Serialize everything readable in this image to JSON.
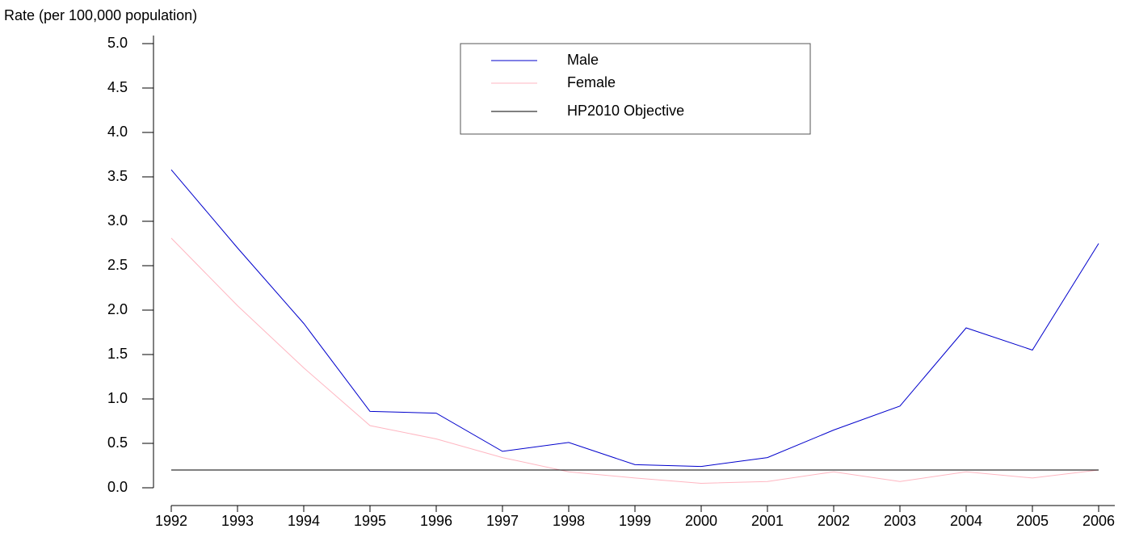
{
  "chart_data": {
    "type": "line",
    "y_label": "Rate (per 100,000 population)",
    "categories": [
      "1992",
      "1993",
      "1994",
      "1995",
      "1996",
      "1997",
      "1998",
      "1999",
      "2000",
      "2001",
      "2002",
      "2003",
      "2004",
      "2005",
      "2006"
    ],
    "series": [
      {
        "name": "Male",
        "color": "#0000cc",
        "values": [
          3.58,
          2.7,
          1.85,
          0.86,
          0.84,
          0.41,
          0.51,
          0.26,
          0.24,
          0.34,
          0.65,
          0.92,
          1.8,
          1.55,
          2.75
        ]
      },
      {
        "name": "Female",
        "color": "#ffb6c1",
        "values": [
          2.81,
          2.05,
          1.35,
          0.7,
          0.55,
          0.34,
          0.18,
          0.11,
          0.05,
          0.07,
          0.18,
          0.07,
          0.18,
          0.11,
          0.2
        ]
      },
      {
        "name": "HP2010 Objective",
        "color": "#000000",
        "values": [
          0.2,
          0.2,
          0.2,
          0.2,
          0.2,
          0.2,
          0.2,
          0.2,
          0.2,
          0.2,
          0.2,
          0.2,
          0.2,
          0.2,
          0.2
        ]
      }
    ],
    "ylim": [
      0,
      5
    ],
    "yticks": [
      {
        "value": 0,
        "label": "0.0"
      },
      0.5,
      {
        "value": 1,
        "label": "1.0"
      },
      1.5,
      {
        "value": 2,
        "label": "2.0"
      },
      2.5,
      {
        "value": 3,
        "label": "3.0"
      },
      3.5,
      {
        "value": 4,
        "label": "4.0"
      },
      4.5,
      {
        "value": 5,
        "label": "5.0"
      }
    ],
    "legend": "top-center"
  }
}
